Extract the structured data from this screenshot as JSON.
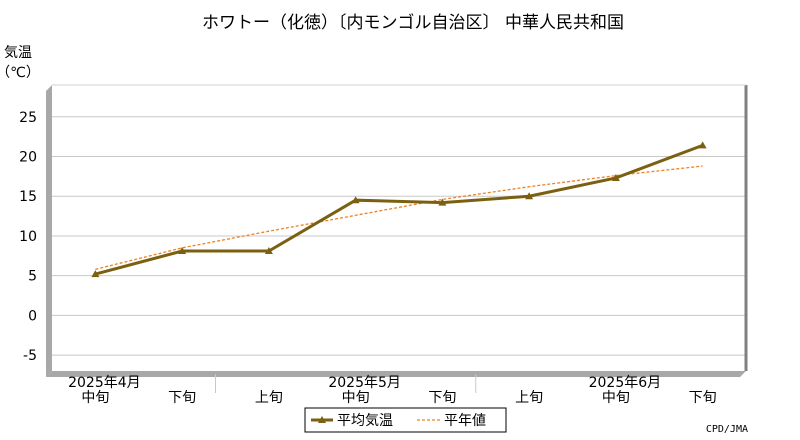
{
  "chart_data": {
    "type": "line",
    "title": "ホワトー（化徳）〔内モンゴル自治区〕 中華人民共和国",
    "ylabel": "気温",
    "yunit": "（℃）",
    "ylim": [
      -7,
      29
    ],
    "yticks": [
      -5,
      0,
      5,
      10,
      15,
      20,
      25
    ],
    "grid": true,
    "x_period_labels": [
      "中旬",
      "下旬",
      "上旬",
      "中旬",
      "下旬",
      "上旬",
      "中旬",
      "下旬"
    ],
    "x_month_labels": [
      {
        "label": "2025年4月",
        "index": 0
      },
      {
        "label": "2025年5月",
        "index": 3
      },
      {
        "label": "2025年6月",
        "index": 6
      }
    ],
    "series": [
      {
        "name": "平均気温",
        "color": "#7a6010",
        "style": "solid-marker",
        "values": [
          5.2,
          8.1,
          8.1,
          14.5,
          14.2,
          15.0,
          17.3,
          21.4
        ]
      },
      {
        "name": "平年値",
        "color": "#f08020",
        "style": "dashed",
        "values": [
          5.8,
          8.5,
          10.6,
          12.6,
          14.6,
          16.2,
          17.6,
          18.8
        ]
      }
    ],
    "legend": "bottom-center",
    "credit": "CPD/JMA"
  }
}
